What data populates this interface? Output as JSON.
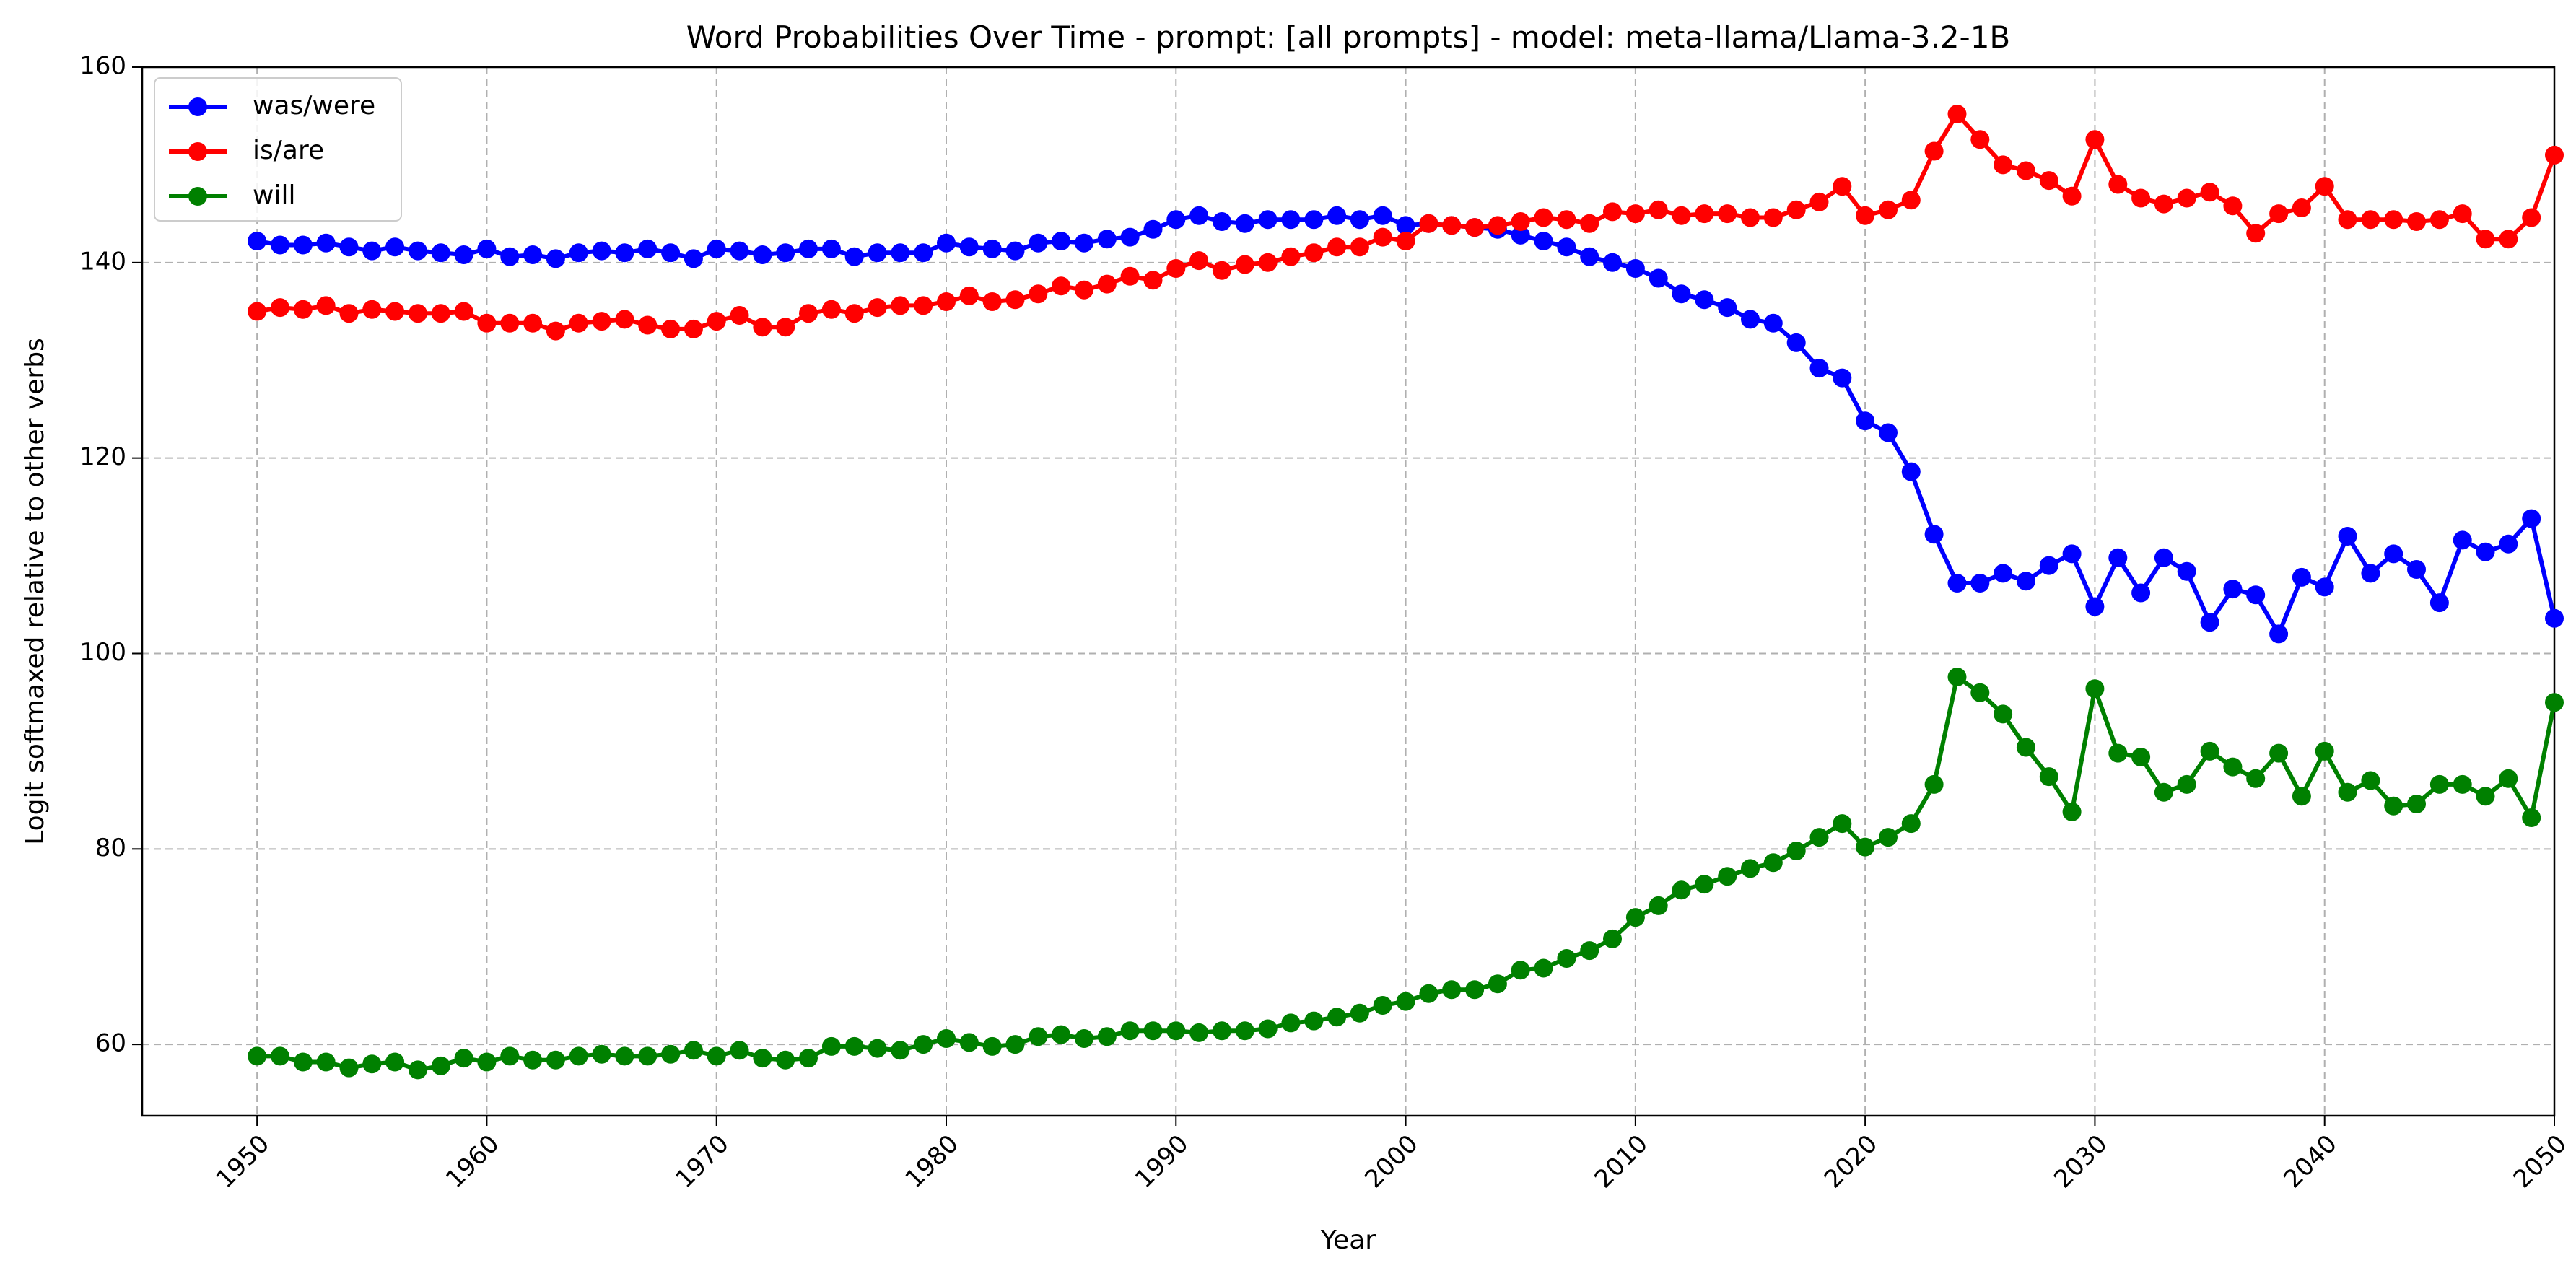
{
  "chart_data": {
    "type": "line",
    "title": "Word Probabilities Over Time - prompt: [all prompts] - model: meta-llama/Llama-3.2-1B",
    "xlabel": "Year",
    "ylabel": "Logit softmaxed relative to other verbs",
    "xlim": [
      1945,
      2050.0
    ],
    "ylim": [
      52.7,
      160
    ],
    "xticks": [
      "1950",
      "1960",
      "1970",
      "1980",
      "1990",
      "2000",
      "2010",
      "2020",
      "2030",
      "2040",
      "2050"
    ],
    "yticks": [
      "60",
      "80",
      "100",
      "120",
      "140",
      "160"
    ],
    "grid": true,
    "legend_position": "top-left",
    "x_start": 1950,
    "x_end": 2050,
    "series": [
      {
        "name": "was/were",
        "color": "#0000ff",
        "values": [
          142.2,
          141.8,
          141.8,
          142.0,
          141.6,
          141.2,
          141.6,
          141.2,
          141.0,
          140.8,
          141.4,
          140.6,
          140.8,
          140.4,
          141.0,
          141.2,
          141.0,
          141.4,
          141.0,
          140.4,
          141.4,
          141.2,
          140.8,
          141.0,
          141.4,
          141.4,
          140.6,
          141.0,
          141.0,
          141.0,
          142.0,
          141.6,
          141.4,
          141.2,
          142.0,
          142.2,
          142.0,
          142.4,
          142.6,
          143.4,
          144.4,
          144.8,
          144.2,
          144.0,
          144.4,
          144.4,
          144.4,
          144.8,
          144.4,
          144.8,
          143.8,
          144.0,
          143.8,
          143.6,
          143.4,
          142.8,
          142.2,
          141.6,
          140.6,
          140.0,
          139.4,
          138.4,
          136.8,
          136.2,
          135.4,
          134.2,
          133.8,
          131.8,
          129.2,
          128.2,
          123.8,
          122.6,
          118.6,
          112.2,
          107.2,
          107.2,
          108.2,
          107.4,
          109.0,
          110.2,
          104.8,
          109.8,
          106.2,
          109.8,
          108.4,
          103.2,
          106.6,
          106.0,
          102.0,
          107.8,
          106.8,
          112.0,
          108.2,
          110.2,
          108.6,
          105.2,
          111.6,
          110.4,
          111.2,
          113.8,
          103.6
        ]
      },
      {
        "name": "is/are",
        "color": "#ff0000",
        "values": [
          135.0,
          135.4,
          135.2,
          135.6,
          134.8,
          135.2,
          135.0,
          134.8,
          134.8,
          135.0,
          133.8,
          133.8,
          133.8,
          133.0,
          133.8,
          134.0,
          134.2,
          133.6,
          133.2,
          133.2,
          134.0,
          134.6,
          133.4,
          133.4,
          134.8,
          135.2,
          134.8,
          135.4,
          135.6,
          135.6,
          136.0,
          136.6,
          136.0,
          136.2,
          136.8,
          137.6,
          137.2,
          137.8,
          138.6,
          138.2,
          139.4,
          140.2,
          139.2,
          139.8,
          140.0,
          140.6,
          141.0,
          141.6,
          141.6,
          142.6,
          142.2,
          144.0,
          143.8,
          143.6,
          143.8,
          144.2,
          144.6,
          144.4,
          144.0,
          145.2,
          145.0,
          145.4,
          144.8,
          145.0,
          145.0,
          144.6,
          144.6,
          145.4,
          146.2,
          147.8,
          144.8,
          145.4,
          146.4,
          151.4,
          155.2,
          152.6,
          150.0,
          149.4,
          148.4,
          146.8,
          152.6,
          148.0,
          146.6,
          146.0,
          146.6,
          147.2,
          145.8,
          143.0,
          145.0,
          145.6,
          147.8,
          144.4,
          144.4,
          144.4,
          144.2,
          144.4,
          145.0,
          142.4,
          142.4,
          144.6,
          151.0
        ]
      },
      {
        "name": "will",
        "color": "#008000",
        "values": [
          58.8,
          58.8,
          58.2,
          58.2,
          57.6,
          58.0,
          58.2,
          57.4,
          57.8,
          58.6,
          58.2,
          58.8,
          58.4,
          58.4,
          58.8,
          59.0,
          58.8,
          58.8,
          59.0,
          59.4,
          58.8,
          59.4,
          58.6,
          58.4,
          58.6,
          59.8,
          59.8,
          59.6,
          59.4,
          60.0,
          60.6,
          60.2,
          59.8,
          60.0,
          60.8,
          61.0,
          60.6,
          60.8,
          61.4,
          61.4,
          61.4,
          61.2,
          61.4,
          61.4,
          61.6,
          62.2,
          62.4,
          62.8,
          63.2,
          64.0,
          64.4,
          65.2,
          65.6,
          65.6,
          66.2,
          67.6,
          67.8,
          68.8,
          69.6,
          70.8,
          73.0,
          74.2,
          75.8,
          76.4,
          77.2,
          78.0,
          78.6,
          79.8,
          81.2,
          82.6,
          80.2,
          81.2,
          82.6,
          86.6,
          97.6,
          96.0,
          93.8,
          90.4,
          87.4,
          83.8,
          96.4,
          89.8,
          89.4,
          85.8,
          86.6,
          90.0,
          88.4,
          87.2,
          89.8,
          85.4,
          90.0,
          85.8,
          87.0,
          84.4,
          84.6,
          86.6,
          86.6,
          85.4,
          87.2,
          83.2,
          95.0
        ]
      }
    ]
  }
}
